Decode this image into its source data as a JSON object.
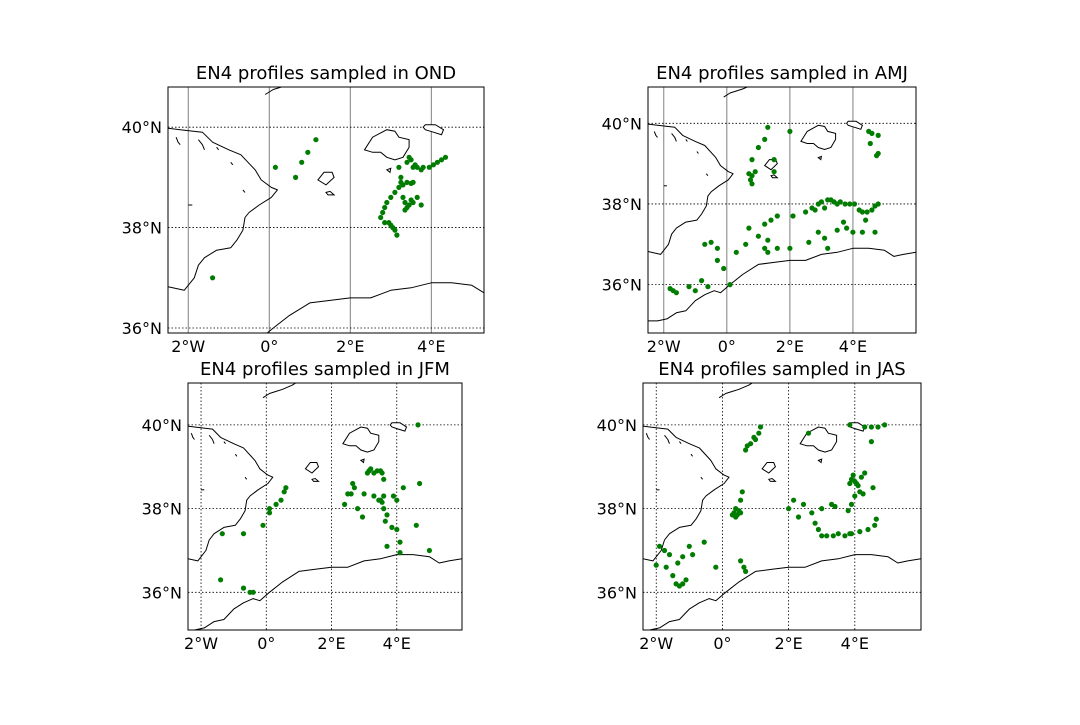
{
  "chart_data": [
    {
      "type": "scatter",
      "title": "EN4 profiles sampled in OND",
      "xlim": [
        -2.5,
        5.3
      ],
      "ylim": [
        35.9,
        40.8
      ],
      "xticks": [
        {
          "v": -2,
          "label": "2°W"
        },
        {
          "v": 0,
          "label": "0°"
        },
        {
          "v": 2,
          "label": "2°E"
        },
        {
          "v": 4,
          "label": "4°E"
        }
      ],
      "yticks": [
        {
          "v": 36,
          "label": "36°N"
        },
        {
          "v": 38,
          "label": "38°N"
        },
        {
          "v": 40,
          "label": "40°N"
        }
      ],
      "grid": "solid",
      "points": [
        [
          -1.4,
          37.0
        ],
        [
          0.15,
          39.2
        ],
        [
          0.65,
          39.0
        ],
        [
          0.8,
          39.3
        ],
        [
          0.95,
          39.5
        ],
        [
          1.15,
          39.75
        ],
        [
          2.75,
          38.2
        ],
        [
          2.8,
          38.3
        ],
        [
          2.85,
          38.4
        ],
        [
          2.9,
          38.5
        ],
        [
          2.85,
          38.1
        ],
        [
          2.95,
          38.1
        ],
        [
          3.0,
          38.05
        ],
        [
          3.05,
          38.0
        ],
        [
          3.1,
          37.95
        ],
        [
          3.15,
          37.85
        ],
        [
          3.0,
          38.6
        ],
        [
          3.1,
          38.7
        ],
        [
          3.2,
          38.8
        ],
        [
          3.25,
          38.9
        ],
        [
          3.3,
          38.85
        ],
        [
          3.4,
          38.9
        ],
        [
          3.5,
          38.88
        ],
        [
          3.55,
          38.9
        ],
        [
          3.3,
          38.6
        ],
        [
          3.35,
          38.5
        ],
        [
          3.4,
          38.4
        ],
        [
          3.35,
          38.35
        ],
        [
          3.45,
          38.45
        ],
        [
          3.5,
          38.55
        ],
        [
          3.55,
          38.5
        ],
        [
          3.65,
          38.6
        ],
        [
          3.75,
          38.45
        ],
        [
          3.2,
          39.2
        ],
        [
          3.25,
          39.0
        ],
        [
          3.4,
          39.3
        ],
        [
          3.45,
          39.4
        ],
        [
          3.5,
          39.35
        ],
        [
          3.6,
          39.25
        ],
        [
          3.65,
          39.2
        ],
        [
          3.75,
          39.15
        ],
        [
          3.55,
          39.2
        ],
        [
          3.8,
          39.2
        ],
        [
          3.95,
          39.2
        ],
        [
          4.05,
          39.25
        ],
        [
          4.15,
          39.3
        ],
        [
          4.25,
          39.35
        ],
        [
          4.35,
          39.4
        ]
      ]
    },
    {
      "type": "scatter",
      "title": "EN4 profiles sampled in AMJ",
      "xlim": [
        -2.5,
        6.0
      ],
      "ylim": [
        34.8,
        40.9
      ],
      "xticks": [
        {
          "v": -2,
          "label": "2°W"
        },
        {
          "v": 0,
          "label": "0°"
        },
        {
          "v": 2,
          "label": "2°E"
        },
        {
          "v": 4,
          "label": "4°E"
        }
      ],
      "yticks": [
        {
          "v": 36,
          "label": "36°N"
        },
        {
          "v": 38,
          "label": "38°N"
        },
        {
          "v": 40,
          "label": "40°N"
        }
      ],
      "grid": "mixed",
      "points": [
        [
          -1.8,
          35.9
        ],
        [
          -1.7,
          35.85
        ],
        [
          -1.6,
          35.8
        ],
        [
          -1.2,
          35.95
        ],
        [
          -1.0,
          35.85
        ],
        [
          -0.8,
          36.1
        ],
        [
          -0.6,
          35.95
        ],
        [
          -0.7,
          37.0
        ],
        [
          -0.5,
          37.05
        ],
        [
          -0.3,
          36.9
        ],
        [
          -0.3,
          36.6
        ],
        [
          -0.1,
          36.4
        ],
        [
          0.1,
          36.0
        ],
        [
          0.3,
          36.8
        ],
        [
          0.6,
          37.0
        ],
        [
          0.7,
          37.4
        ],
        [
          0.8,
          38.5
        ],
        [
          0.75,
          38.6
        ],
        [
          0.8,
          38.7
        ],
        [
          0.7,
          38.75
        ],
        [
          0.9,
          38.8
        ],
        [
          0.8,
          39.1
        ],
        [
          1.0,
          39.4
        ],
        [
          1.2,
          39.6
        ],
        [
          1.3,
          39.9
        ],
        [
          1.5,
          38.8
        ],
        [
          1.5,
          39.1
        ],
        [
          2.0,
          39.8
        ],
        [
          1.0,
          37.2
        ],
        [
          1.2,
          37.5
        ],
        [
          1.4,
          37.6
        ],
        [
          1.6,
          37.7
        ],
        [
          1.3,
          37.1
        ],
        [
          1.6,
          36.9
        ],
        [
          1.2,
          36.9
        ],
        [
          1.3,
          36.8
        ],
        [
          2.0,
          36.9
        ],
        [
          2.1,
          37.7
        ],
        [
          2.5,
          37.8
        ],
        [
          2.7,
          37.9
        ],
        [
          2.8,
          37.85
        ],
        [
          2.9,
          38.0
        ],
        [
          3.0,
          38.05
        ],
        [
          3.1,
          37.9
        ],
        [
          3.2,
          38.1
        ],
        [
          3.3,
          38.1
        ],
        [
          3.4,
          38.05
        ],
        [
          3.5,
          38.0
        ],
        [
          3.6,
          38.05
        ],
        [
          3.75,
          38.0
        ],
        [
          3.9,
          38.0
        ],
        [
          4.05,
          38.0
        ],
        [
          4.2,
          37.85
        ],
        [
          4.3,
          37.8
        ],
        [
          4.45,
          37.8
        ],
        [
          4.6,
          37.85
        ],
        [
          4.7,
          37.95
        ],
        [
          4.8,
          38.0
        ],
        [
          2.6,
          37.05
        ],
        [
          2.9,
          37.3
        ],
        [
          3.1,
          37.15
        ],
        [
          3.2,
          36.9
        ],
        [
          3.5,
          37.35
        ],
        [
          3.7,
          37.55
        ],
        [
          3.8,
          37.4
        ],
        [
          4.0,
          37.3
        ],
        [
          4.3,
          37.3
        ],
        [
          4.4,
          37.6
        ],
        [
          4.7,
          37.3
        ],
        [
          4.5,
          39.8
        ],
        [
          4.6,
          39.75
        ],
        [
          4.8,
          39.7
        ],
        [
          4.55,
          39.5
        ],
        [
          4.8,
          39.25
        ],
        [
          4.75,
          39.2
        ]
      ]
    },
    {
      "type": "scatter",
      "title": "EN4 profiles sampled in JFM",
      "xlim": [
        -2.4,
        6.0
      ],
      "ylim": [
        35.1,
        41.0
      ],
      "xticks": [
        {
          "v": -2,
          "label": "2°W"
        },
        {
          "v": 0,
          "label": "0°"
        },
        {
          "v": 2,
          "label": "2°E"
        },
        {
          "v": 4,
          "label": "4°E"
        }
      ],
      "yticks": [
        {
          "v": 36,
          "label": "36°N"
        },
        {
          "v": 38,
          "label": "38°N"
        },
        {
          "v": 40,
          "label": "40°N"
        }
      ],
      "grid": "dotted",
      "points": [
        [
          -1.35,
          37.4
        ],
        [
          -1.4,
          36.3
        ],
        [
          -0.7,
          36.1
        ],
        [
          -0.5,
          36.0
        ],
        [
          -0.4,
          36.0
        ],
        [
          -0.7,
          37.4
        ],
        [
          -0.1,
          37.6
        ],
        [
          0.1,
          37.9
        ],
        [
          0.1,
          38.0
        ],
        [
          0.3,
          38.1
        ],
        [
          0.45,
          38.2
        ],
        [
          0.55,
          38.4
        ],
        [
          0.6,
          38.5
        ],
        [
          2.4,
          38.1
        ],
        [
          2.5,
          38.35
        ],
        [
          2.6,
          38.35
        ],
        [
          2.7,
          38.5
        ],
        [
          2.65,
          38.6
        ],
        [
          2.8,
          38.0
        ],
        [
          2.95,
          37.8
        ],
        [
          3.0,
          38.35
        ],
        [
          3.1,
          38.85
        ],
        [
          3.15,
          38.9
        ],
        [
          3.2,
          38.95
        ],
        [
          3.3,
          38.85
        ],
        [
          3.4,
          38.9
        ],
        [
          3.5,
          38.9
        ],
        [
          3.55,
          38.85
        ],
        [
          3.6,
          38.7
        ],
        [
          3.3,
          38.3
        ],
        [
          3.45,
          38.2
        ],
        [
          3.5,
          38.2
        ],
        [
          3.55,
          38.15
        ],
        [
          3.6,
          38.3
        ],
        [
          3.6,
          38.0
        ],
        [
          3.65,
          37.7
        ],
        [
          3.7,
          37.85
        ],
        [
          3.7,
          37.1
        ],
        [
          3.85,
          37.55
        ],
        [
          4.0,
          37.5
        ],
        [
          4.1,
          37.2
        ],
        [
          4.1,
          36.95
        ],
        [
          3.9,
          38.3
        ],
        [
          4.0,
          38.2
        ],
        [
          4.2,
          38.5
        ],
        [
          4.6,
          37.6
        ],
        [
          4.7,
          38.6
        ],
        [
          5.0,
          37.0
        ],
        [
          4.65,
          40.0
        ]
      ]
    },
    {
      "type": "scatter",
      "title": "EN4 profiles sampled in JAS",
      "xlim": [
        -2.4,
        6.0
      ],
      "ylim": [
        35.1,
        41.0
      ],
      "xticks": [
        {
          "v": -2,
          "label": "2°W"
        },
        {
          "v": 0,
          "label": "0°"
        },
        {
          "v": 2,
          "label": "2°E"
        },
        {
          "v": 4,
          "label": "4°E"
        }
      ],
      "yticks": [
        {
          "v": 36,
          "label": "36°N"
        },
        {
          "v": 38,
          "label": "38°N"
        },
        {
          "v": 40,
          "label": "40°N"
        }
      ],
      "grid": "dotted",
      "points": [
        [
          -2.0,
          36.65
        ],
        [
          -1.9,
          37.1
        ],
        [
          -1.75,
          37.0
        ],
        [
          -1.6,
          36.9
        ],
        [
          -1.7,
          36.6
        ],
        [
          -1.5,
          36.4
        ],
        [
          -1.4,
          36.2
        ],
        [
          -1.3,
          36.15
        ],
        [
          -1.2,
          36.2
        ],
        [
          -1.1,
          36.3
        ],
        [
          -1.35,
          36.7
        ],
        [
          -1.2,
          36.85
        ],
        [
          -0.9,
          36.9
        ],
        [
          -1.0,
          37.1
        ],
        [
          -0.55,
          37.2
        ],
        [
          -0.2,
          36.6
        ],
        [
          0.3,
          37.85
        ],
        [
          0.35,
          37.9
        ],
        [
          0.4,
          37.8
        ],
        [
          0.45,
          37.85
        ],
        [
          0.5,
          37.95
        ],
        [
          0.55,
          37.9
        ],
        [
          0.4,
          38.0
        ],
        [
          0.55,
          38.2
        ],
        [
          0.6,
          38.4
        ],
        [
          0.7,
          36.5
        ],
        [
          0.65,
          36.6
        ],
        [
          0.55,
          36.75
        ],
        [
          0.7,
          39.4
        ],
        [
          0.75,
          39.5
        ],
        [
          0.85,
          39.55
        ],
        [
          0.95,
          39.7
        ],
        [
          1.0,
          39.65
        ],
        [
          1.1,
          39.8
        ],
        [
          1.15,
          39.95
        ],
        [
          2.0,
          38.0
        ],
        [
          2.15,
          38.2
        ],
        [
          2.3,
          37.8
        ],
        [
          2.45,
          38.1
        ],
        [
          2.6,
          39.8
        ],
        [
          2.7,
          37.9
        ],
        [
          2.8,
          37.65
        ],
        [
          2.9,
          37.5
        ],
        [
          3.0,
          37.35
        ],
        [
          3.15,
          37.35
        ],
        [
          3.35,
          37.35
        ],
        [
          3.5,
          37.4
        ],
        [
          3.7,
          37.35
        ],
        [
          3.8,
          37.95
        ],
        [
          3.85,
          37.4
        ],
        [
          3.9,
          37.4
        ],
        [
          4.15,
          37.45
        ],
        [
          4.4,
          37.5
        ],
        [
          4.6,
          37.6
        ],
        [
          4.65,
          37.75
        ],
        [
          3.0,
          38.0
        ],
        [
          3.3,
          38.1
        ],
        [
          3.4,
          38.05
        ],
        [
          3.9,
          38.1
        ],
        [
          4.0,
          38.3
        ],
        [
          3.85,
          38.6
        ],
        [
          3.9,
          38.7
        ],
        [
          3.95,
          38.8
        ],
        [
          4.0,
          38.65
        ],
        [
          4.05,
          38.6
        ],
        [
          4.15,
          38.4
        ],
        [
          4.25,
          38.35
        ],
        [
          4.2,
          38.75
        ],
        [
          4.3,
          38.85
        ],
        [
          4.1,
          38.55
        ],
        [
          4.55,
          38.5
        ],
        [
          3.85,
          40.0
        ],
        [
          4.3,
          39.95
        ],
        [
          4.5,
          39.95
        ],
        [
          4.7,
          39.95
        ],
        [
          4.9,
          40.0
        ],
        [
          4.5,
          39.6
        ]
      ]
    }
  ]
}
